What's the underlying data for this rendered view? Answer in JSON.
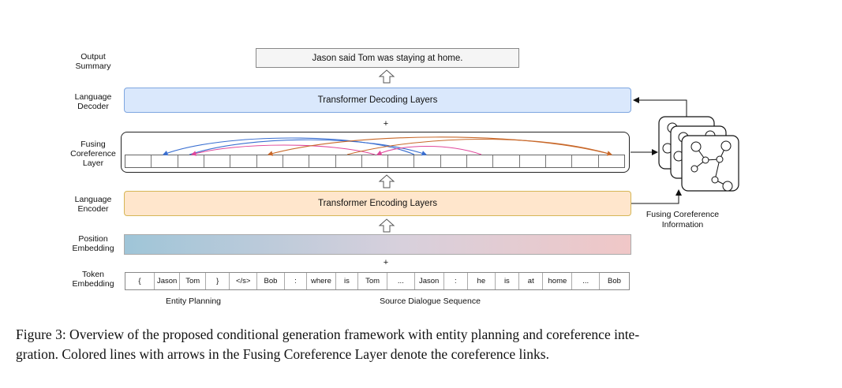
{
  "labels": {
    "output_summary": [
      "Output",
      "Summary"
    ],
    "language_decoder": [
      "Language",
      "Decoder"
    ],
    "fusing_layer": [
      "Fusing",
      "Coreference",
      "Layer"
    ],
    "language_encoder": [
      "Language",
      "Encoder"
    ],
    "position_embedding": [
      "Position",
      "Embedding"
    ],
    "token_embedding": [
      "Token",
      "Embedding"
    ]
  },
  "output_text": "Jason said Tom was staying at home.",
  "decoder_text": "Transformer Decoding Layers",
  "encoder_text": "Transformer Encoding Layers",
  "plus": "+",
  "tokens": [
    "{",
    "Jason",
    "Tom",
    "}",
    "</s>",
    "Bob",
    ":",
    "where",
    "is",
    "Tom",
    "...",
    "Jason",
    ":",
    "he",
    "is",
    "at",
    "home",
    "...",
    "Bob"
  ],
  "entity_planning": "Entity Planning",
  "source_dialogue": "Source Dialogue Sequence",
  "fusing_info": [
    "Fusing Coreference",
    "Information"
  ],
  "caption": [
    "Figure 3: Overview of the proposed conditional generation framework with entity planning and coreference inte-",
    "gration. Colored lines with arrows in the Fusing Coreference Layer denote the coreference links."
  ],
  "colors": {
    "decoder_fill": "#dae8fc",
    "decoder_border": "#7ea6e0",
    "encoder_fill": "#ffe6cc",
    "encoder_border": "#d6b656",
    "pos_emb_left": "#9fc5d8",
    "pos_emb_right": "#f0c7c7",
    "link_blue": "#3a6fd1",
    "link_pink": "#e0479a",
    "link_orange": "#c8682a"
  }
}
